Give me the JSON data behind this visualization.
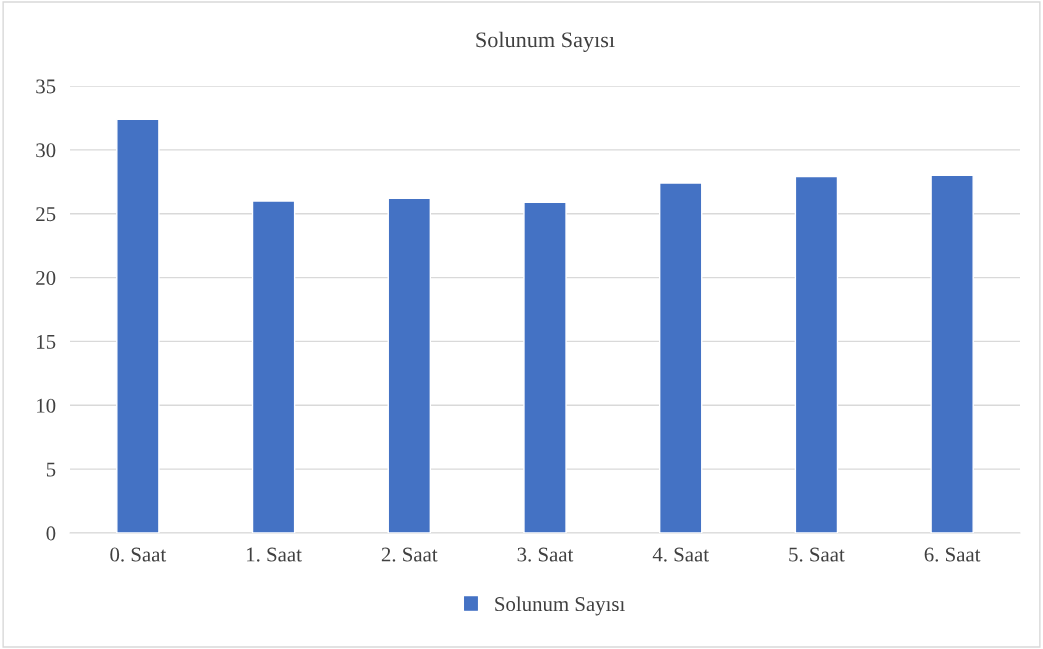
{
  "chart_data": {
    "type": "bar",
    "title": "Solunum Sayısı",
    "categories": [
      "0. Saat",
      "1. Saat",
      "2. Saat",
      "3. Saat",
      "4. Saat",
      "5. Saat",
      "6. Saat"
    ],
    "series": [
      {
        "name": "Solunum Sayısı",
        "color": "#4472c4",
        "values": [
          32.4,
          26.0,
          26.2,
          25.9,
          27.4,
          27.9,
          28.0
        ]
      }
    ],
    "ylim": [
      0,
      35
    ],
    "yticks": [
      0,
      5,
      10,
      15,
      20,
      25,
      30,
      35
    ],
    "grid": "y",
    "legend": "bottom"
  }
}
